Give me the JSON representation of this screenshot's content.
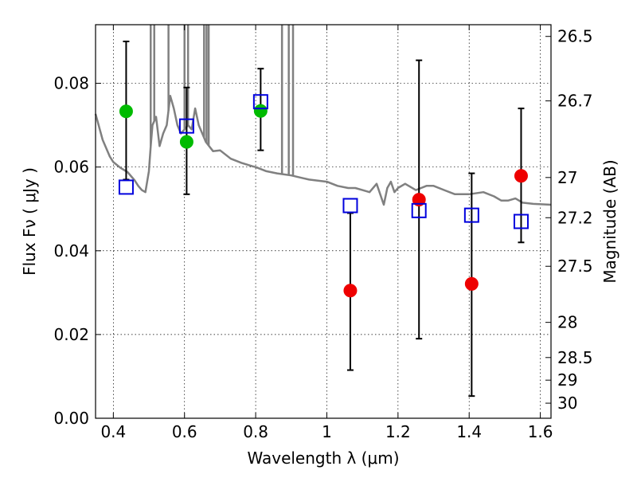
{
  "chart_data": {
    "type": "scatter",
    "title": "",
    "xlabel": "Wavelength  λ (μm)",
    "ylabel": "Flux  Fν  ( μJy )",
    "ylabel_right": "Magnitude (AB)",
    "xlim": [
      0.35,
      1.63
    ],
    "ylim": [
      0.0,
      0.094
    ],
    "grid": true,
    "x_ticks": [
      0.4,
      0.6,
      0.8,
      1.0,
      1.2,
      1.4,
      1.6
    ],
    "x_tick_labels": [
      "0.4",
      "0.6",
      "0.8",
      "1",
      "1.2",
      "1.4",
      "1.6"
    ],
    "y_ticks": [
      0.0,
      0.02,
      0.04,
      0.06,
      0.08
    ],
    "y_tick_labels": [
      "0.00",
      "0.02",
      "0.04",
      "0.06",
      "0.08"
    ],
    "right_ticks": [
      {
        "label": "26.5",
        "flux": 0.0912
      },
      {
        "label": "26.7",
        "flux": 0.0758
      },
      {
        "label": "27",
        "flux": 0.0575
      },
      {
        "label": "27.2",
        "flux": 0.0479
      },
      {
        "label": "27.5",
        "flux": 0.0363
      },
      {
        "label": "28",
        "flux": 0.0229
      },
      {
        "label": "28.5",
        "flux": 0.0145
      },
      {
        "label": "29",
        "flux": 0.0091
      },
      {
        "label": "30",
        "flux": 0.0036
      }
    ],
    "series": [
      {
        "kind": "model_line",
        "color": "#808080",
        "points": [
          [
            0.35,
            0.0727
          ],
          [
            0.37,
            0.0665
          ],
          [
            0.39,
            0.0625
          ],
          [
            0.4,
            0.0612
          ],
          [
            0.42,
            0.0598
          ],
          [
            0.44,
            0.0588
          ],
          [
            0.46,
            0.0568
          ],
          [
            0.47,
            0.0555
          ],
          [
            0.48,
            0.0545
          ],
          [
            0.49,
            0.054
          ],
          [
            0.5,
            0.059
          ],
          [
            0.505,
            0.065
          ],
          [
            0.51,
            0.07
          ],
          [
            0.52,
            0.072
          ],
          [
            0.53,
            0.065
          ],
          [
            0.54,
            0.068
          ],
          [
            0.55,
            0.07
          ],
          [
            0.56,
            0.077
          ],
          [
            0.57,
            0.074
          ],
          [
            0.58,
            0.07
          ],
          [
            0.59,
            0.068
          ],
          [
            0.6,
            0.069
          ],
          [
            0.61,
            0.07
          ],
          [
            0.62,
            0.069
          ],
          [
            0.63,
            0.074
          ],
          [
            0.64,
            0.07
          ],
          [
            0.66,
            0.066
          ],
          [
            0.68,
            0.0638
          ],
          [
            0.7,
            0.064
          ],
          [
            0.73,
            0.062
          ],
          [
            0.76,
            0.061
          ],
          [
            0.79,
            0.0602
          ],
          [
            0.8,
            0.06
          ],
          [
            0.83,
            0.059
          ],
          [
            0.86,
            0.0585
          ],
          [
            0.9,
            0.058
          ],
          [
            0.95,
            0.057
          ],
          [
            1.0,
            0.0565
          ],
          [
            1.03,
            0.0555
          ],
          [
            1.06,
            0.055
          ],
          [
            1.08,
            0.055
          ],
          [
            1.1,
            0.0545
          ],
          [
            1.12,
            0.054
          ],
          [
            1.14,
            0.056
          ],
          [
            1.16,
            0.051
          ],
          [
            1.17,
            0.055
          ],
          [
            1.18,
            0.0565
          ],
          [
            1.19,
            0.054
          ],
          [
            1.2,
            0.055
          ],
          [
            1.22,
            0.056
          ],
          [
            1.25,
            0.0545
          ],
          [
            1.28,
            0.0555
          ],
          [
            1.3,
            0.0555
          ],
          [
            1.33,
            0.0545
          ],
          [
            1.36,
            0.0535
          ],
          [
            1.4,
            0.0535
          ],
          [
            1.44,
            0.054
          ],
          [
            1.47,
            0.053
          ],
          [
            1.49,
            0.052
          ],
          [
            1.51,
            0.052
          ],
          [
            1.53,
            0.0525
          ],
          [
            1.55,
            0.0515
          ],
          [
            1.58,
            0.0512
          ],
          [
            1.63,
            0.051
          ]
        ]
      },
      {
        "kind": "model_spikes",
        "color": "#808080",
        "points": [
          [
            0.505,
            0.094
          ],
          [
            0.515,
            0.094
          ],
          [
            0.555,
            0.094
          ],
          [
            0.6,
            0.094
          ],
          [
            0.61,
            0.094
          ],
          [
            0.655,
            0.094
          ],
          [
            0.662,
            0.094
          ],
          [
            0.668,
            0.094
          ],
          [
            0.874,
            0.094
          ],
          [
            0.893,
            0.094
          ],
          [
            0.905,
            0.094
          ]
        ]
      },
      {
        "kind": "errorbars",
        "color": "#000000",
        "points": [
          {
            "x": 0.436,
            "lo": 0.057,
            "hi": 0.09
          },
          {
            "x": 0.606,
            "lo": 0.0535,
            "hi": 0.079
          },
          {
            "x": 0.814,
            "lo": 0.064,
            "hi": 0.0835
          },
          {
            "x": 1.066,
            "lo": 0.0115,
            "hi": 0.049
          },
          {
            "x": 1.259,
            "lo": 0.019,
            "hi": 0.0855
          },
          {
            "x": 1.407,
            "lo": 0.0053,
            "hi": 0.0585
          },
          {
            "x": 1.546,
            "lo": 0.042,
            "hi": 0.074
          }
        ]
      },
      {
        "kind": "observed_optical",
        "color": "#00bb00",
        "points": [
          [
            0.436,
            0.0733
          ],
          [
            0.606,
            0.066
          ],
          [
            0.814,
            0.0734
          ]
        ]
      },
      {
        "kind": "observed_nir",
        "color": "#ee0000",
        "points": [
          [
            1.066,
            0.0305
          ],
          [
            1.259,
            0.0522
          ],
          [
            1.407,
            0.0321
          ],
          [
            1.546,
            0.0579
          ]
        ]
      },
      {
        "kind": "model_photometry",
        "color": "#0000dd",
        "points": [
          [
            0.436,
            0.0552
          ],
          [
            0.606,
            0.0698
          ],
          [
            0.814,
            0.0756
          ],
          [
            1.066,
            0.0508
          ],
          [
            1.259,
            0.0496
          ],
          [
            1.407,
            0.0485
          ],
          [
            1.546,
            0.047
          ]
        ]
      }
    ]
  }
}
